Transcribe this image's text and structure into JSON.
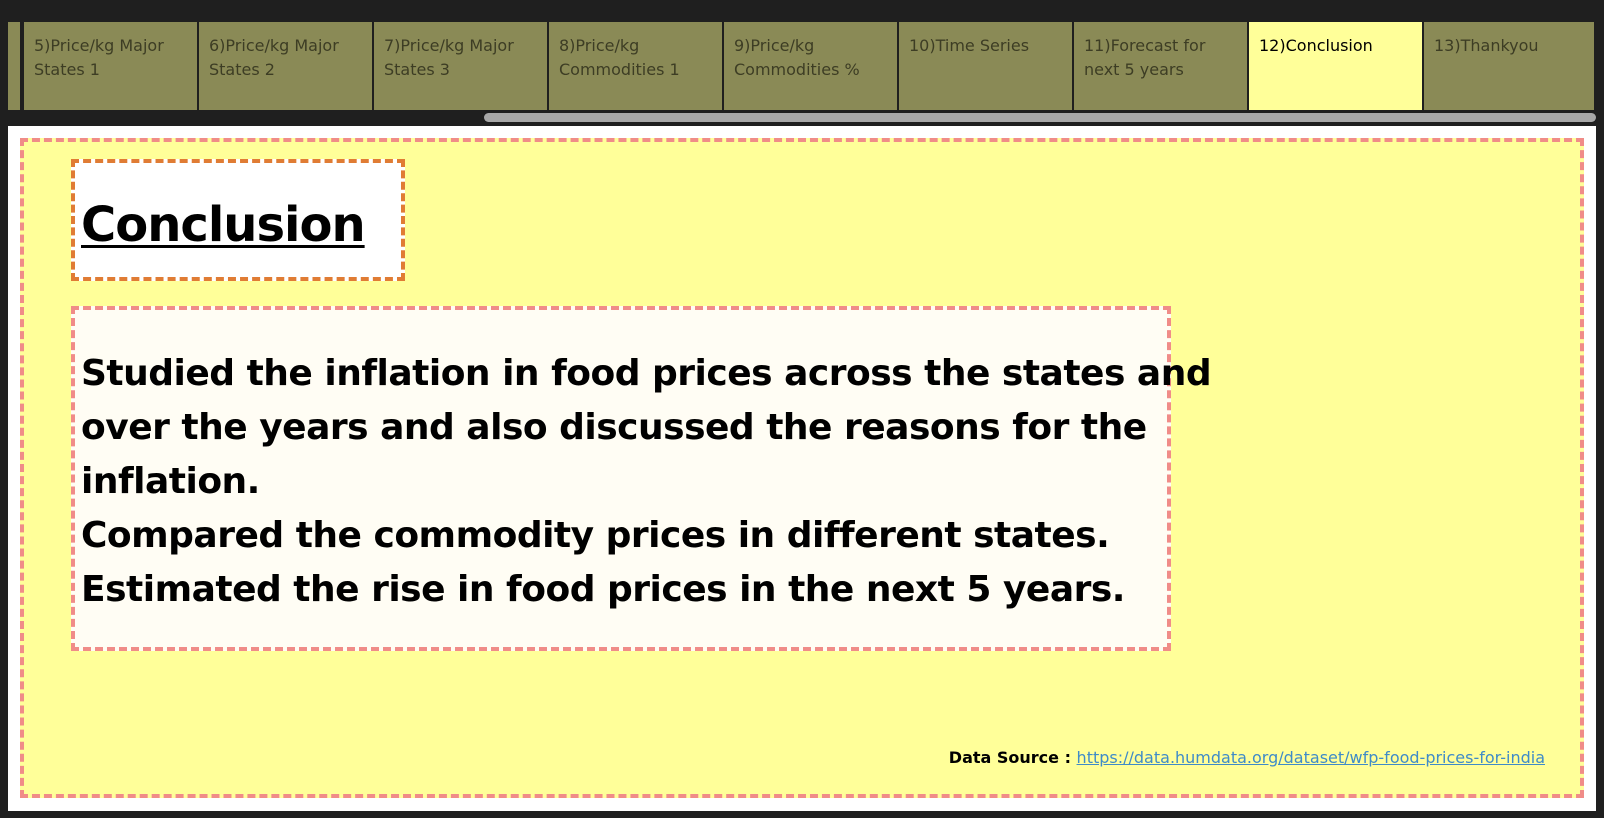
{
  "tabs": [
    {
      "label": "5)Price/kg Major States 1",
      "active": false
    },
    {
      "label": "6)Price/kg Major States 2",
      "active": false
    },
    {
      "label": "7)Price/kg Major States 3",
      "active": false
    },
    {
      "label": "8)Price/kg Commodities 1",
      "active": false
    },
    {
      "label": "9)Price/kg Commodities %",
      "active": false
    },
    {
      "label": "10)Time Series",
      "active": false
    },
    {
      "label": "11)Forecast for next 5 years",
      "active": false
    },
    {
      "label": "12)Conclusion",
      "active": true
    },
    {
      "label": "13)Thankyou",
      "active": false
    }
  ],
  "colors": {
    "tab_bg": "#8a8a56",
    "tab_active_bg": "#ffff99",
    "canvas_bg": "#ffff99",
    "dashed_pink": "#f08c88",
    "dashed_orange": "#e07c34",
    "link": "#3f8bc8"
  },
  "dashboard": {
    "title": "Conclusion",
    "body_lines": [
      "Studied the inflation in food prices across the states and",
      "over the years and also discussed the reasons for the",
      "inflation.",
      "Compared the commodity prices in different states.",
      "Estimated the rise in food prices in the next 5 years."
    ],
    "data_source_label": "Data Source : ",
    "data_source_link": "https://data.humdata.org/dataset/wfp-food-prices-for-india"
  }
}
